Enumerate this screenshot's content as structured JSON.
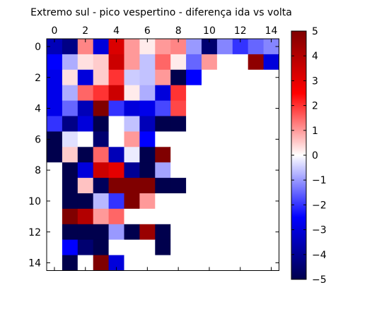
{
  "chart_data": {
    "type": "heatmap",
    "title": "Extremo sul - pico vespertino - diferença ida vs volta",
    "xlabel": "",
    "ylabel": "",
    "x_ticks": [
      0,
      2,
      4,
      6,
      8,
      10,
      12,
      14
    ],
    "y_ticks": [
      0,
      2,
      4,
      6,
      8,
      10,
      12,
      14
    ],
    "x_tick_position": "top",
    "xlim": [
      -0.5,
      15.5
    ],
    "ylim": [
      14.5,
      -0.5
    ],
    "colormap": "seismic",
    "vmin": -5,
    "vmax": 5,
    "colorbar_ticks": [
      5,
      4,
      3,
      2,
      1,
      0,
      -1,
      -2,
      -3,
      -4,
      -5
    ],
    "colorbar_labels": [
      "5",
      "4",
      "3",
      "2",
      "1",
      "0",
      "−1",
      "−2",
      "−3",
      "−4",
      "−5"
    ],
    "grid": false,
    "values": [
      [
        -3.5,
        -4.2,
        1.2,
        -3.0,
        3.2,
        1.0,
        0.2,
        1.0,
        1.2,
        -1.0,
        -4.5,
        -1.2,
        -2.0,
        -1.5,
        -1.2
      ],
      [
        -2.5,
        -0.8,
        0.3,
        0.5,
        3.5,
        1.0,
        -0.6,
        1.5,
        0.2,
        -1.5,
        1.0,
        0.0,
        0.0,
        4.7,
        -3.0
      ],
      [
        -2.8,
        0.3,
        -3.0,
        0.5,
        2.0,
        -0.5,
        -0.6,
        1.0,
        -5.0,
        -2.5,
        0.0,
        0.0,
        0.0,
        0.0,
        0.0
      ],
      [
        -2.8,
        -0.8,
        1.5,
        2.0,
        3.5,
        0.2,
        -0.8,
        -3.0,
        2.0,
        0.0,
        0.0,
        0.0,
        0.0,
        0.0,
        0.0
      ],
      [
        -2.8,
        -1.5,
        -3.5,
        5.0,
        -2.0,
        -3.0,
        -2.8,
        -1.8,
        1.8,
        0.0,
        0.0,
        0.0,
        0.0,
        0.0,
        0.0
      ],
      [
        -2.0,
        -4.2,
        -3.0,
        -5.0,
        0.0,
        -0.6,
        -3.5,
        -5.0,
        -5.0,
        0.0,
        0.0,
        0.0,
        0.0,
        0.0,
        0.0
      ],
      [
        -5.0,
        -0.3,
        0.0,
        -4.5,
        0.0,
        1.0,
        -2.5,
        0.0,
        0.0,
        0.0,
        0.0,
        0.0,
        0.0,
        0.0,
        0.0
      ],
      [
        -5.0,
        0.5,
        -5.0,
        1.5,
        -3.5,
        -0.2,
        -5.0,
        5.0,
        0.0,
        0.0,
        0.0,
        0.0,
        0.0,
        0.0,
        0.0
      ],
      [
        0.0,
        -5.0,
        -3.0,
        3.5,
        3.0,
        -4.0,
        -5.0,
        -0.9,
        0.0,
        0.0,
        0.0,
        0.0,
        0.0,
        0.0,
        0.0
      ],
      [
        0.0,
        -5.0,
        0.6,
        -4.8,
        5.0,
        5.0,
        5.0,
        -5.0,
        -5.0,
        0.0,
        0.0,
        0.0,
        0.0,
        0.0,
        0.0
      ],
      [
        0.0,
        -5.0,
        -5.0,
        -0.7,
        -2.0,
        5.0,
        1.0,
        0.0,
        0.0,
        0.0,
        0.0,
        0.0,
        0.0,
        0.0,
        0.0
      ],
      [
        0.0,
        5.0,
        4.0,
        1.0,
        1.5,
        0.0,
        0.0,
        0.0,
        0.0,
        0.0,
        0.0,
        0.0,
        0.0,
        0.0,
        0.0
      ],
      [
        0.0,
        -5.0,
        -5.0,
        -5.0,
        -1.0,
        -5.0,
        4.5,
        -5.0,
        0.0,
        0.0,
        0.0,
        0.0,
        0.0,
        0.0,
        0.0
      ],
      [
        0.0,
        -2.5,
        -4.5,
        -5.0,
        0.0,
        0.0,
        0.0,
        -5.0,
        0.0,
        0.0,
        0.0,
        0.0,
        0.0,
        0.0,
        0.0
      ],
      [
        0.0,
        -5.0,
        0.0,
        5.0,
        -3.0,
        0.0,
        0.0,
        0.0,
        0.0,
        0.0,
        0.0,
        0.0,
        0.0,
        0.0,
        0.0
      ]
    ]
  }
}
